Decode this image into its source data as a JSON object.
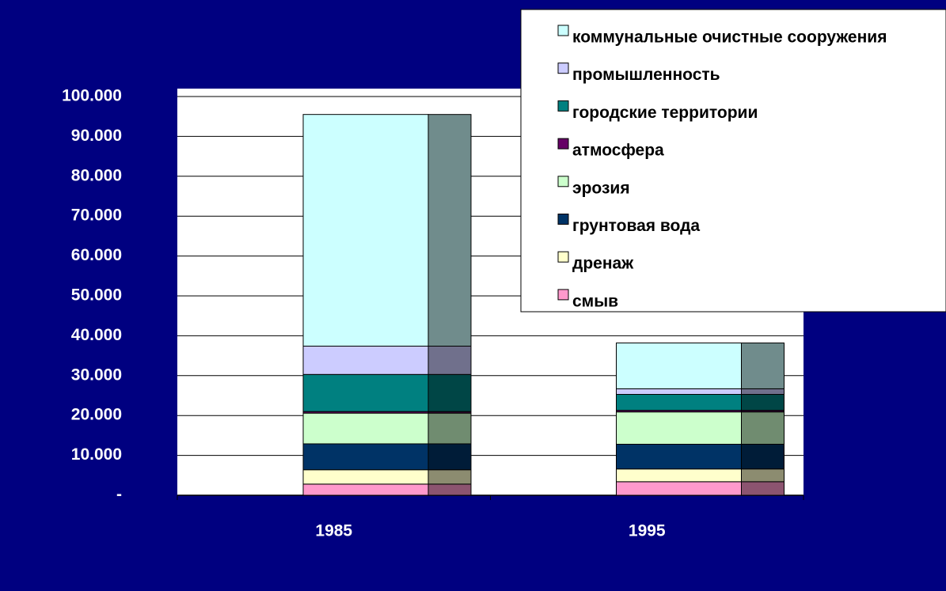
{
  "chart_data": {
    "type": "stacked-bar",
    "categories": [
      "1985",
      "1995"
    ],
    "series": [
      {
        "name": "смыв",
        "color": "#ff99cc",
        "values": [
          2800,
          3400
        ]
      },
      {
        "name": "дренаж",
        "color": "#ffffcc",
        "values": [
          3600,
          3200
        ]
      },
      {
        "name": "грунтовая вода",
        "color": "#003366",
        "values": [
          6500,
          6200
        ]
      },
      {
        "name": "эрозия",
        "color": "#ccffcc",
        "values": [
          7700,
          8100
        ]
      },
      {
        "name": "атмосфера",
        "color": "#660066",
        "values": [
          400,
          400
        ]
      },
      {
        "name": "городские территории",
        "color": "#008080",
        "values": [
          9300,
          4000
        ]
      },
      {
        "name": "промышленность",
        "color": "#ccccff",
        "values": [
          7100,
          1400
        ]
      },
      {
        "name": "коммунальные очистные сооружения",
        "color": "#ccffff",
        "values": [
          58100,
          11500
        ]
      }
    ],
    "ylim": [
      0,
      100000
    ],
    "yticks": [
      {
        "value": 0,
        "label": "-"
      },
      {
        "value": 10000,
        "label": "10.000"
      },
      {
        "value": 20000,
        "label": "20.000"
      },
      {
        "value": 30000,
        "label": "30.000"
      },
      {
        "value": 40000,
        "label": "40.000"
      },
      {
        "value": 50000,
        "label": "50.000"
      },
      {
        "value": 60000,
        "label": "60.000"
      },
      {
        "value": 70000,
        "label": "70.000"
      },
      {
        "value": 80000,
        "label": "80.000"
      },
      {
        "value": 90000,
        "label": "90.000"
      },
      {
        "value": 100000,
        "label": "100.000"
      }
    ],
    "grid": true,
    "legend": "top-right"
  }
}
